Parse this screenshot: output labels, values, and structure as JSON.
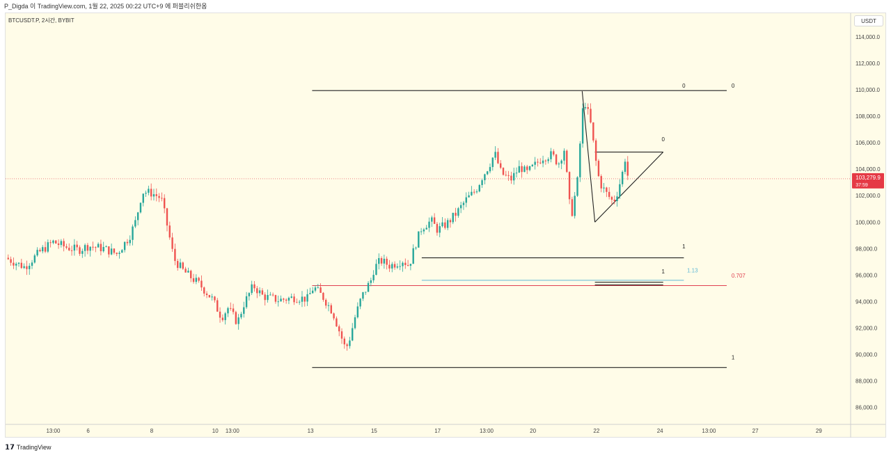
{
  "header": {
    "text": "P_Digda 이 TradingView.com, 1월 22, 2025 00:22 UTC+9 에 퍼블리쉬한옴"
  },
  "symbol": "BTCUSDT.P, 2시간, BYBIT",
  "currency": "USDT",
  "footer": {
    "brand": "TradingView",
    "logo_icon": "tradingview-logo-icon"
  },
  "colors": {
    "bg": "#fffce8",
    "up": "#26a69a",
    "down": "#ef5350",
    "line": "#222222",
    "teal": "#5fb8d6",
    "red": "#e04050",
    "price_tag": "#e53945"
  },
  "chart_data": {
    "type": "candlestick",
    "y_ticks": [
      "86,000.0",
      "88,000.0",
      "90,000.0",
      "92,000.0",
      "94,000.0",
      "96,000.0",
      "98,000.0",
      "100,000.0",
      "102,000.0",
      "104,000.0",
      "106,000.0",
      "108,000.0",
      "110,000.0",
      "112,000.0",
      "114,000.0"
    ],
    "y_tick_values": [
      86000,
      88000,
      90000,
      92000,
      94000,
      96000,
      98000,
      100000,
      102000,
      104000,
      106000,
      108000,
      110000,
      112000,
      114000
    ],
    "ylim": [
      84700,
      115800
    ],
    "x_ticks": [
      {
        "label": "13:00",
        "t": 27
      },
      {
        "label": "6",
        "t": 6
      },
      {
        "label": "8",
        "t": 8
      },
      {
        "label": "10",
        "t": 10
      },
      {
        "label": "13:00",
        "t": 10.54
      },
      {
        "label": "13",
        "t": 13
      },
      {
        "label": "15",
        "t": 15
      },
      {
        "label": "17",
        "t": 17
      },
      {
        "label": "13:00",
        "t": 18.54
      },
      {
        "label": "20",
        "t": 20
      },
      {
        "label": "22",
        "t": 22
      },
      {
        "label": "24",
        "t": 24
      },
      {
        "label": "13:00",
        "t": 25.54
      },
      {
        "label": "27",
        "t": 27
      },
      {
        "label": "29",
        "t": 29
      }
    ],
    "xlim": [
      3.4,
      30.0
    ],
    "current_price": {
      "label": "103,279.9",
      "timer": "37:59",
      "value": 103279.9
    },
    "price_path": [
      [
        3.4,
        97300
      ],
      [
        4.0,
        96600
      ],
      [
        4.5,
        97800
      ],
      [
        4.9,
        98500
      ],
      [
        5.3,
        98100
      ],
      [
        5.7,
        97900
      ],
      [
        6.0,
        98200
      ],
      [
        6.5,
        98000
      ],
      [
        6.9,
        97600
      ],
      [
        7.3,
        98900
      ],
      [
        7.5,
        100100
      ],
      [
        7.7,
        102300
      ],
      [
        8.0,
        102200
      ],
      [
        8.3,
        101800
      ],
      [
        8.5,
        99600
      ],
      [
        8.7,
        97200
      ],
      [
        9.0,
        96300
      ],
      [
        9.5,
        95300
      ],
      [
        9.9,
        94200
      ],
      [
        10.2,
        92800
      ],
      [
        10.4,
        93500
      ],
      [
        10.7,
        92400
      ],
      [
        10.9,
        93800
      ],
      [
        11.2,
        95200
      ],
      [
        11.5,
        94400
      ],
      [
        12.0,
        94100
      ],
      [
        12.5,
        94300
      ],
      [
        12.9,
        94200
      ],
      [
        13.1,
        95100
      ],
      [
        13.4,
        94300
      ],
      [
        13.7,
        93200
      ],
      [
        13.9,
        91800
      ],
      [
        14.1,
        90400
      ],
      [
        14.2,
        90900
      ],
      [
        14.4,
        92800
      ],
      [
        14.6,
        94300
      ],
      [
        14.9,
        95600
      ],
      [
        15.0,
        96500
      ],
      [
        15.2,
        97100
      ],
      [
        15.5,
        96700
      ],
      [
        15.9,
        97100
      ],
      [
        16.1,
        96700
      ],
      [
        16.3,
        98300
      ],
      [
        16.5,
        99600
      ],
      [
        16.8,
        100100
      ],
      [
        17.0,
        99400
      ],
      [
        17.3,
        99900
      ],
      [
        17.6,
        100700
      ],
      [
        17.9,
        101700
      ],
      [
        18.2,
        102400
      ],
      [
        18.4,
        103400
      ],
      [
        18.6,
        104200
      ],
      [
        18.8,
        105200
      ],
      [
        19.0,
        103700
      ],
      [
        19.3,
        103200
      ],
      [
        19.6,
        104200
      ],
      [
        19.8,
        103700
      ],
      [
        20.1,
        104400
      ],
      [
        20.3,
        104900
      ],
      [
        20.6,
        105100
      ],
      [
        20.8,
        104400
      ],
      [
        21.0,
        105600
      ],
      [
        21.1,
        102500
      ],
      [
        21.2,
        100300
      ],
      [
        21.4,
        103100
      ],
      [
        21.5,
        106500
      ],
      [
        21.6,
        109400
      ],
      [
        21.8,
        107700
      ],
      [
        21.9,
        106000
      ],
      [
        22.0,
        104300
      ],
      [
        22.1,
        103000
      ],
      [
        22.3,
        102200
      ],
      [
        22.5,
        101600
      ],
      [
        22.6,
        101800
      ],
      [
        22.8,
        103500
      ],
      [
        22.9,
        104800
      ],
      [
        23.0,
        103280
      ]
    ],
    "annotations": {
      "hlines": [
        {
          "y": 109950,
          "x0": 13.05,
          "x1": 26.1,
          "color": "#222222",
          "width": 1.1
        },
        {
          "y": 89000,
          "x0": 13.05,
          "x1": 26.1,
          "color": "#222222",
          "width": 1.1
        },
        {
          "y": 97300,
          "x0": 16.5,
          "x1": 24.75,
          "color": "#222222",
          "width": 1.1
        },
        {
          "y": 95600,
          "x0": 16.5,
          "x1": 24.75,
          "color": "#5fb8d6",
          "width": 1.0
        },
        {
          "y": 95200,
          "x0": 13.05,
          "x1": 26.1,
          "color": "#e04050",
          "width": 1.0
        },
        {
          "y": 105300,
          "x0": 21.95,
          "x1": 24.1,
          "color": "#222222",
          "width": 1.1
        },
        {
          "y": 95450,
          "x0": 21.95,
          "x1": 24.1,
          "color": "#222222",
          "width": 1.1
        },
        {
          "y": 95250,
          "x0": 21.95,
          "x1": 24.1,
          "color": "#222222",
          "width": 1.1
        }
      ],
      "segments": [
        {
          "x0": 21.55,
          "y0": 109900,
          "x1": 21.95,
          "y1": 100000
        },
        {
          "x0": 21.95,
          "y0": 100000,
          "x1": 24.1,
          "y1": 105300
        }
      ],
      "labels": [
        {
          "text": "0",
          "x": 24.7,
          "y": 109950,
          "color": "#222222"
        },
        {
          "text": "0",
          "x": 26.25,
          "y": 109950,
          "color": "#222222"
        },
        {
          "text": "0",
          "x": 24.05,
          "y": 105900,
          "color": "#222222"
        },
        {
          "text": "1",
          "x": 24.7,
          "y": 97800,
          "color": "#222222"
        },
        {
          "text": "1",
          "x": 24.05,
          "y": 95900,
          "color": "#222222"
        },
        {
          "text": "1.13",
          "x": 24.85,
          "y": 96000,
          "color": "#5fb8d6"
        },
        {
          "text": "0.707",
          "x": 26.25,
          "y": 95600,
          "color": "#e04050"
        },
        {
          "text": "1",
          "x": 26.25,
          "y": 89400,
          "color": "#222222"
        }
      ]
    }
  }
}
